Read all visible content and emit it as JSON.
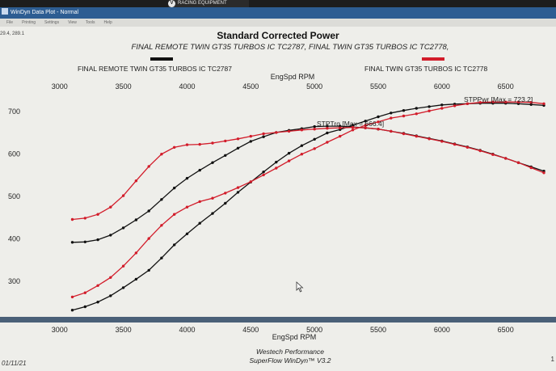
{
  "window": {
    "title": "WinDyn Data Plot - Normal",
    "brand_badge": "RACING EQUIPMENT",
    "menu_items": [
      "File",
      "Printing",
      "Settings",
      "View",
      "Tools",
      "Help"
    ],
    "coord_readout": "29.4, 289.1"
  },
  "chart_data": {
    "type": "line",
    "title": "Standard Corrected Power",
    "subtitle": "FINAL REMOTE TWIN GT35 TURBOS IC TC2787, FINAL TWIN GT35 TURBOS IC TC2778,",
    "xlabel": "EngSpd RPM",
    "xlim": [
      2900,
      6800
    ],
    "ylim": [
      220,
      750
    ],
    "x_ticks": [
      3000,
      3500,
      4000,
      4500,
      5000,
      5500,
      6000,
      6500
    ],
    "y_ticks": [
      300,
      400,
      500,
      600,
      700
    ],
    "grid": false,
    "legend": [
      {
        "name": "FINAL REMOTE TWIN GT35 TURBOS IC TC2787",
        "color": "#111111",
        "position": "top-left"
      },
      {
        "name": "FINAL TWIN GT35 TURBOS IC TC2778",
        "color": "#d21c2a",
        "position": "top-right"
      }
    ],
    "annotations": {
      "pwr_max": "STPPwr [Max = 723.2]",
      "trq_max": "STPTrq [Max = 666.4]"
    },
    "series": [
      {
        "name": "FINAL REMOTE TWIN GT35 TURBOS IC TC2787",
        "measure": "STPPwr",
        "color": "#111111",
        "x": [
          3100,
          3200,
          3300,
          3400,
          3500,
          3600,
          3700,
          3800,
          3900,
          4000,
          4100,
          4200,
          4300,
          4400,
          4500,
          4600,
          4700,
          4800,
          4900,
          5000,
          5100,
          5200,
          5300,
          5400,
          5500,
          5600,
          5700,
          5800,
          5900,
          6000,
          6100,
          6200,
          6300,
          6400,
          6500,
          6600,
          6700,
          6800
        ],
        "values": [
          232,
          240,
          251,
          266,
          285,
          305,
          326,
          355,
          386,
          412,
          437,
          460,
          484,
          510,
          534,
          558,
          581,
          602,
          620,
          635,
          650,
          658,
          668,
          678,
          688,
          697,
          703,
          708,
          712,
          716,
          718,
          719,
          720,
          720,
          720,
          719,
          717,
          715
        ]
      },
      {
        "name": "FINAL TWIN GT35 TURBOS IC TC2778",
        "measure": "STPPwr",
        "color": "#d21c2a",
        "x": [
          3100,
          3200,
          3300,
          3400,
          3500,
          3600,
          3700,
          3800,
          3900,
          4000,
          4100,
          4200,
          4300,
          4400,
          4500,
          4600,
          4700,
          4800,
          4900,
          5000,
          5100,
          5200,
          5300,
          5400,
          5500,
          5600,
          5700,
          5800,
          5900,
          6000,
          6100,
          6200,
          6300,
          6400,
          6500,
          6600,
          6700,
          6800
        ],
        "values": [
          263,
          273,
          290,
          309,
          336,
          367,
          401,
          432,
          458,
          475,
          488,
          496,
          508,
          521,
          535,
          551,
          567,
          584,
          600,
          613,
          628,
          642,
          657,
          668,
          676,
          685,
          690,
          695,
          702,
          708,
          714,
          719,
          722,
          723,
          723,
          723,
          722,
          719
        ]
      },
      {
        "name": "FINAL REMOTE TWIN GT35 TURBOS IC TC2787",
        "measure": "STPTrq",
        "color": "#111111",
        "x": [
          3100,
          3200,
          3300,
          3400,
          3500,
          3600,
          3700,
          3800,
          3900,
          4000,
          4100,
          4200,
          4300,
          4400,
          4500,
          4600,
          4700,
          4800,
          4900,
          5000,
          5100,
          5200,
          5300,
          5400,
          5500,
          5600,
          5700,
          5800,
          5900,
          6000,
          6100,
          6200,
          6300,
          6400,
          6500,
          6600,
          6700,
          6800
        ],
        "values": [
          392,
          393,
          398,
          409,
          426,
          445,
          466,
          493,
          520,
          543,
          562,
          580,
          597,
          614,
          630,
          641,
          651,
          656,
          660,
          665,
          666,
          666,
          664,
          662,
          659,
          654,
          649,
          643,
          637,
          631,
          624,
          617,
          609,
          600,
          590,
          580,
          570,
          560
        ]
      },
      {
        "name": "FINAL TWIN GT35 TURBOS IC TC2778",
        "measure": "STPTrq",
        "color": "#d21c2a",
        "x": [
          3100,
          3200,
          3300,
          3400,
          3500,
          3600,
          3700,
          3800,
          3900,
          4000,
          4100,
          4200,
          4300,
          4400,
          4500,
          4600,
          4700,
          4800,
          4900,
          5000,
          5100,
          5200,
          5300,
          5400,
          5500,
          5600,
          5700,
          5800,
          5900,
          6000,
          6100,
          6200,
          6300,
          6400,
          6500,
          6600,
          6700,
          6800
        ],
        "values": [
          446,
          449,
          458,
          475,
          502,
          537,
          571,
          600,
          616,
          622,
          623,
          626,
          631,
          636,
          642,
          648,
          651,
          654,
          657,
          659,
          661,
          662,
          663,
          662,
          659,
          654,
          648,
          642,
          636,
          630,
          623,
          616,
          608,
          599,
          590,
          580,
          568,
          556
        ]
      }
    ]
  },
  "footer": {
    "line1": "Westech Performance",
    "line2": "SuperFlow WinDyn™ V3.2",
    "date": "01/11/21",
    "page": "1"
  }
}
